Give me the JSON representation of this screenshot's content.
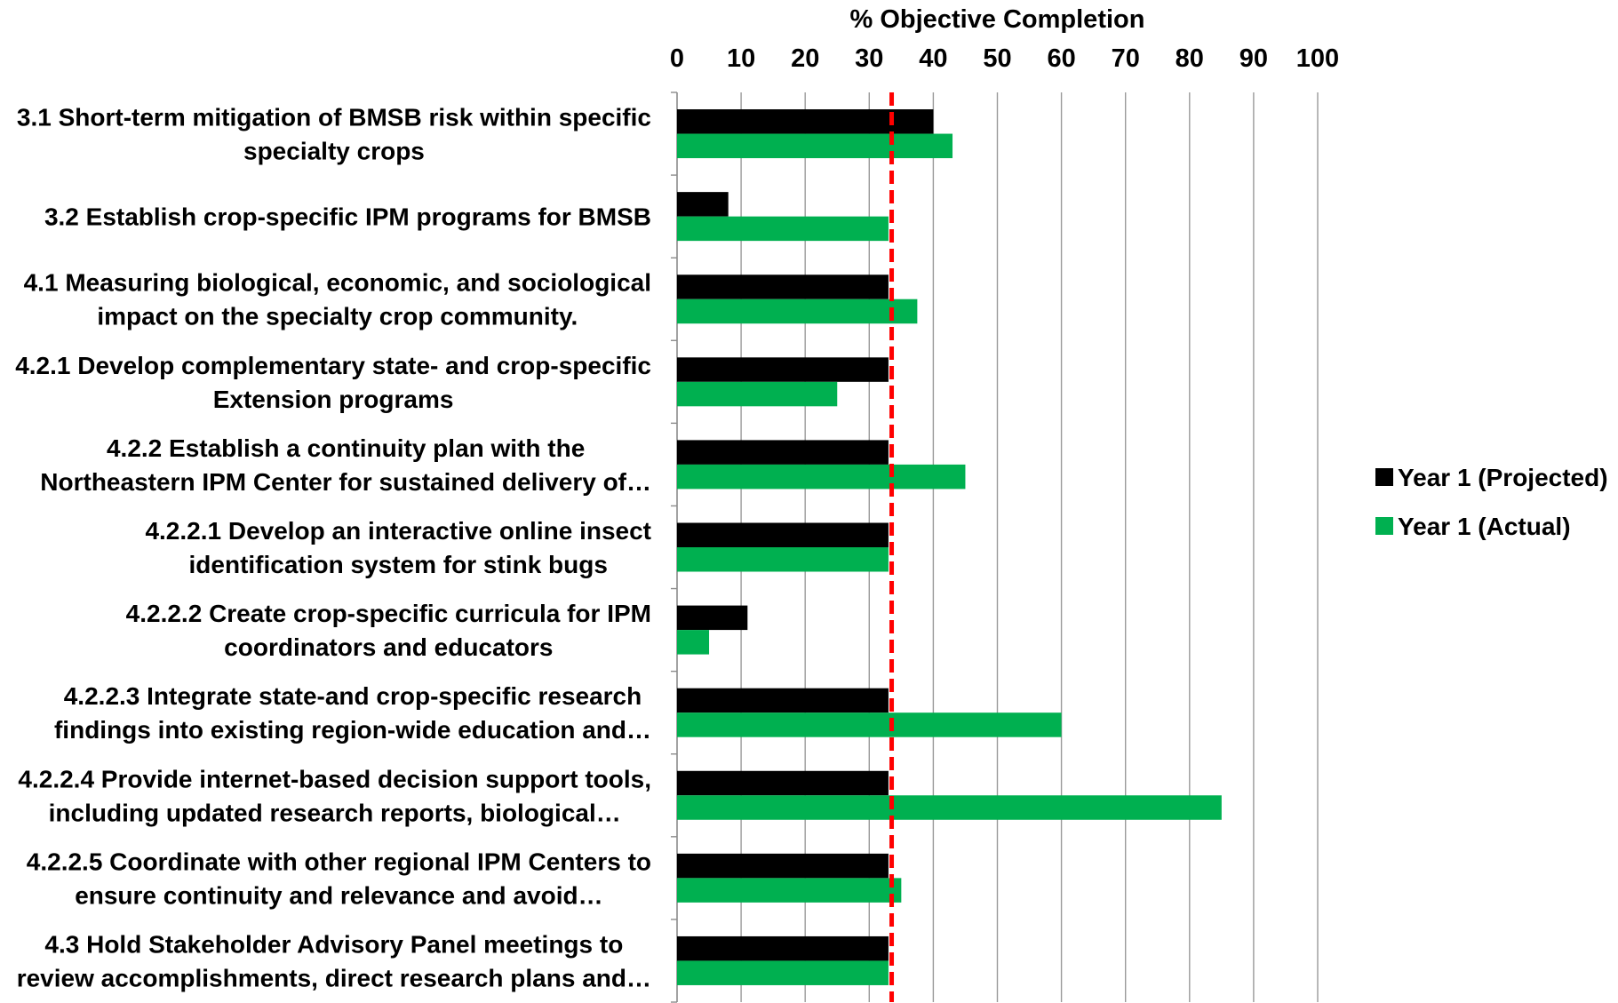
{
  "chart_data": {
    "type": "bar",
    "orientation": "horizontal",
    "title": "",
    "xlabel": "% Objective Completion",
    "ylabel": "",
    "xlim": [
      0,
      100
    ],
    "xticks": [
      "0",
      "10",
      "20",
      "30",
      "40",
      "50",
      "60",
      "70",
      "80",
      "90",
      "100"
    ],
    "x_axis_position": "top",
    "grid": true,
    "legend_position": "right",
    "categories": [
      {
        "lines": [
          "3.1  Short-term mitigation of BMSB risk within specific",
          "specialty crops"
        ]
      },
      {
        "lines": [
          "3.2  Establish crop-specific IPM programs for BMSB"
        ]
      },
      {
        "lines": [
          "4.1  Measuring biological, economic, and sociological",
          "impact on the specialty crop community."
        ]
      },
      {
        "lines": [
          "4.2.1  Develop complementary state- and crop-specific",
          "Extension programs"
        ]
      },
      {
        "lines": [
          "4.2.2  Establish a continuity plan with the",
          "Northeastern IPM Center for sustained delivery of…"
        ]
      },
      {
        "lines": [
          "4.2.2.1  Develop an interactive online insect",
          "identification system for stink bugs"
        ]
      },
      {
        "lines": [
          "4.2.2.2  Create crop-specific curricula for IPM",
          "coordinators and educators"
        ]
      },
      {
        "lines": [
          "4.2.2.3  Integrate state-and crop-specific research",
          "findings into existing region-wide education and…"
        ]
      },
      {
        "lines": [
          "4.2.2.4  Provide internet-based decision support tools,",
          "including updated research reports, biological…"
        ]
      },
      {
        "lines": [
          "4.2.2.5  Coordinate with other regional IPM Centers to",
          "ensure continuity and relevance and avoid…"
        ]
      },
      {
        "lines": [
          "4.3  Hold Stakeholder Advisory Panel meetings to",
          "review accomplishments, direct research plans and…"
        ]
      }
    ],
    "series": [
      {
        "name": "Year 1 (Projected)",
        "color": "#000000",
        "values": [
          40,
          8,
          33,
          33,
          33,
          33,
          11,
          33,
          33,
          33,
          33
        ]
      },
      {
        "name": "Year 1 (Actual)",
        "color": "#00b050",
        "values": [
          43,
          33,
          37.5,
          25,
          45,
          33,
          5,
          60,
          85,
          35,
          33
        ]
      }
    ],
    "reference_line": {
      "value": 33.5,
      "color": "#ff0000",
      "style": "dashed"
    }
  }
}
